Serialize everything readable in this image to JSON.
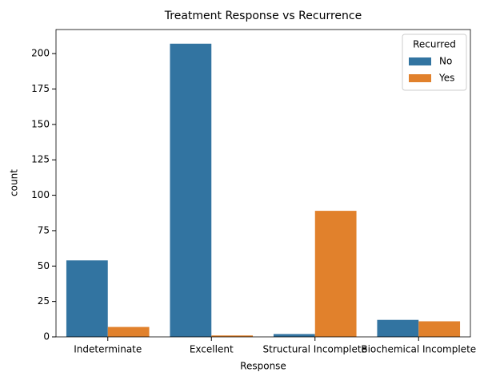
{
  "chart_data": {
    "type": "bar",
    "title": "Treatment Response vs Recurrence",
    "xlabel": "Response",
    "ylabel": "count",
    "categories": [
      "Indeterminate",
      "Excellent",
      "Structural Incomplete",
      "Biochemical Incomplete"
    ],
    "series": [
      {
        "name": "No",
        "color": "#3274a1",
        "values": [
          54,
          207,
          2,
          12
        ]
      },
      {
        "name": "Yes",
        "color": "#e1812c",
        "values": [
          7,
          1,
          89,
          11
        ]
      }
    ],
    "legend_title": "Recurred",
    "legend": "upper right",
    "ylim": [
      0,
      217
    ],
    "yticks": [
      0,
      25,
      50,
      75,
      100,
      125,
      150,
      175,
      200
    ],
    "grid": false
  }
}
